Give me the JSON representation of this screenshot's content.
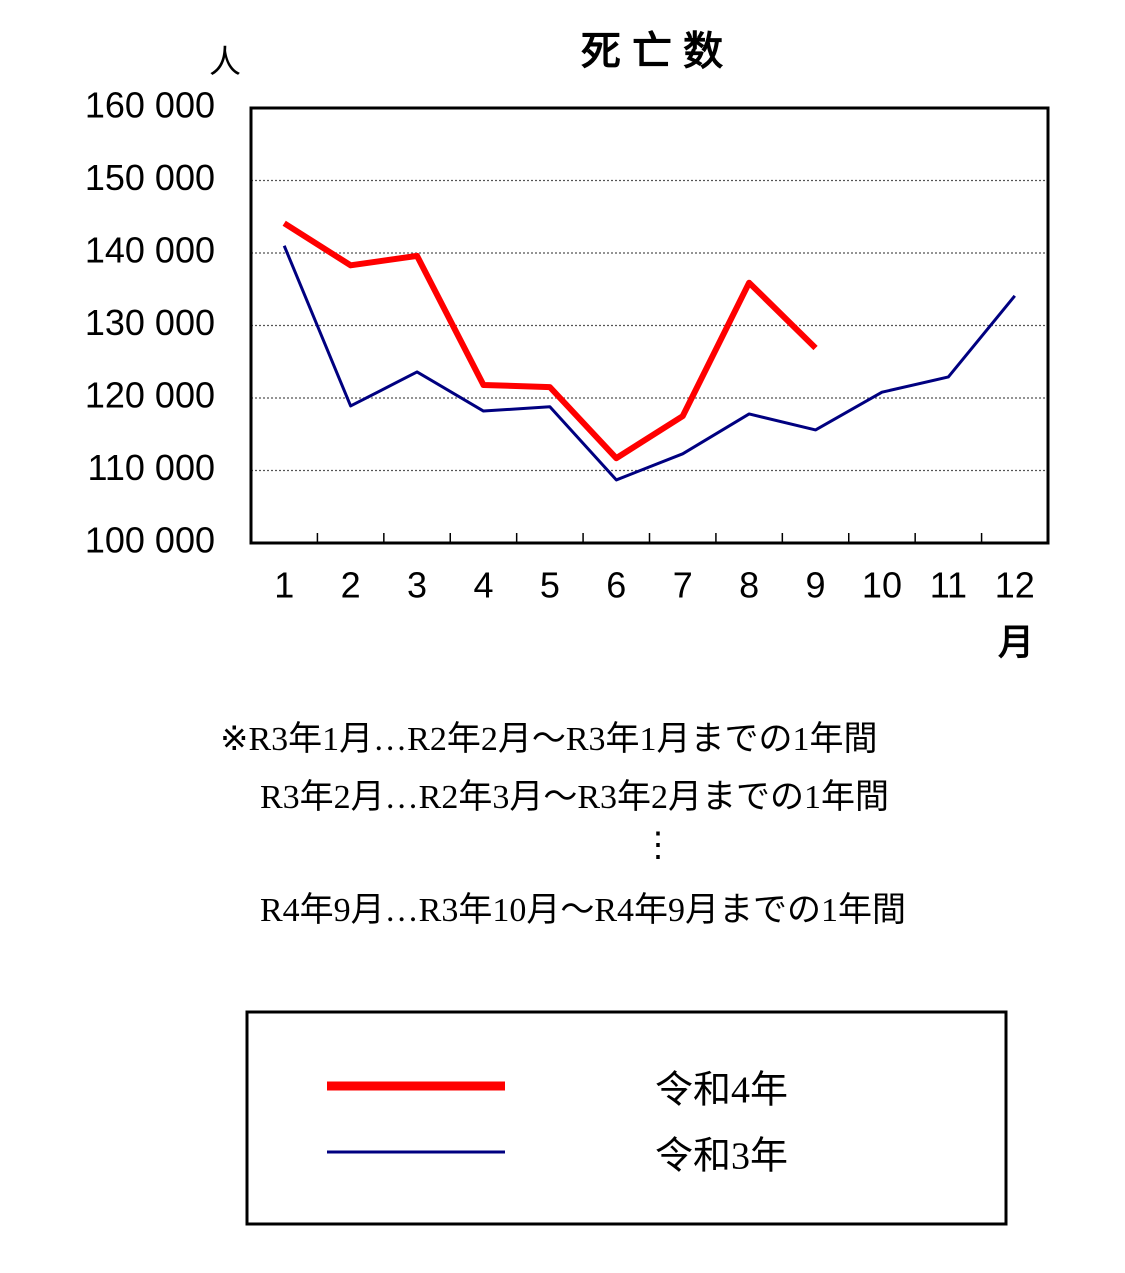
{
  "chart_data": {
    "type": "line",
    "title": "死 亡 数",
    "y_label": "人",
    "x_label": "月",
    "categories": [
      "1",
      "2",
      "3",
      "4",
      "5",
      "6",
      "7",
      "8",
      "9",
      "10",
      "11",
      "12"
    ],
    "series": [
      {
        "name": "令和4年",
        "color": "#ff0000",
        "values": [
          144100,
          138300,
          139600,
          121800,
          121500,
          111700,
          117500,
          135900,
          126900,
          null,
          null,
          null
        ]
      },
      {
        "name": "令和3年",
        "color": "#000080",
        "values": [
          141000,
          118900,
          123600,
          118200,
          118800,
          108700,
          112300,
          117800,
          115600,
          120800,
          122900,
          134100
        ]
      }
    ],
    "ylim": [
      100000,
      160000
    ],
    "yticks": [
      {
        "value": 100000,
        "label": "100 000"
      },
      {
        "value": 110000,
        "label": "110 000"
      },
      {
        "value": 120000,
        "label": "120 000"
      },
      {
        "value": 130000,
        "label": "130 000"
      },
      {
        "value": 140000,
        "label": "140 000"
      },
      {
        "value": 150000,
        "label": "150 000"
      },
      {
        "value": 160000,
        "label": "160 000"
      }
    ],
    "grid": true,
    "notes": [
      "※R3年1月…R2年2月～R3年1月までの1年間",
      "R3年2月…R2年3月～R3年2月までの1年間",
      "⋮",
      "R4年9月…R3年10月～R4年9月までの1年間"
    ]
  }
}
